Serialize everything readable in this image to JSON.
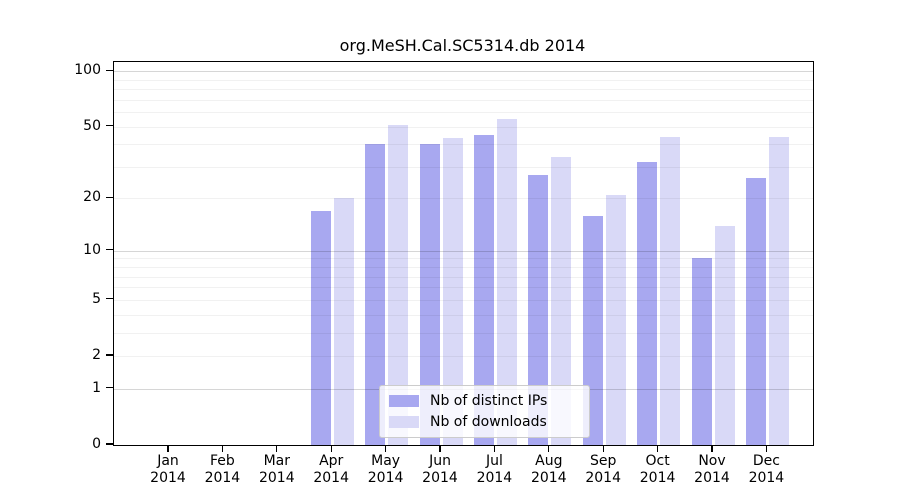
{
  "title": "org.MeSH.Cal.SC5314.db 2014",
  "chart_data": {
    "type": "bar",
    "title": "org.MeSH.Cal.SC5314.db 2014",
    "categories": [
      "Jan 2014",
      "Feb 2014",
      "Mar 2014",
      "Apr 2014",
      "May 2014",
      "Jun 2014",
      "Jul 2014",
      "Aug 2014",
      "Sep 2014",
      "Oct 2014",
      "Nov 2014",
      "Dec 2014"
    ],
    "series": [
      {
        "name": "Nb of distinct IPs",
        "color": "#a8a8f0",
        "values": [
          0,
          0,
          0,
          17,
          40,
          40,
          45,
          27,
          16,
          32,
          9,
          26
        ]
      },
      {
        "name": "Nb of downloads",
        "color": "#d9d9f7",
        "values": [
          0,
          0,
          0,
          20,
          51,
          43,
          55,
          34,
          21,
          44,
          14,
          44
        ]
      }
    ],
    "y_scale": "log1p",
    "y_ticks": [
      0,
      1,
      2,
      5,
      10,
      20,
      50,
      100
    ],
    "y_tick_labels": [
      "0",
      "1",
      "2",
      "5",
      "10",
      "20",
      "50",
      "100"
    ],
    "ylim": [
      0,
      114
    ],
    "xlabel": "",
    "ylabel": "",
    "grid": "horizontal; faint minor lines, darker lines at 1/10/100",
    "legend_position": "lower center",
    "legend_labels": [
      "Nb of distinct IPs",
      "Nb of downloads"
    ]
  },
  "colors": {
    "background": "#ffffff",
    "axis": "#000000",
    "bar_distinct_ips": "#a8a8f0",
    "bar_downloads": "#d9d9f7"
  }
}
